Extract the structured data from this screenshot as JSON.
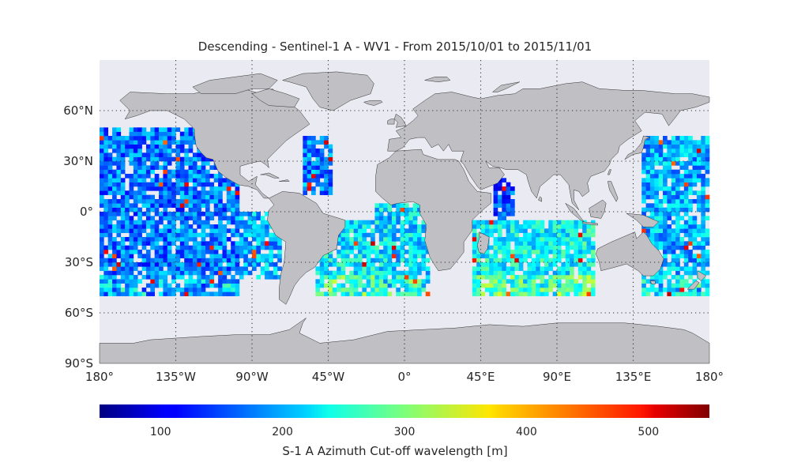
{
  "title": "Descending - Sentinel-1 A - WV1 - From 2015/10/01 to 2015/11/01",
  "map": {
    "projection": "equirectangular",
    "lon_range": [
      -180,
      180
    ],
    "lat_range": [
      -90,
      90
    ],
    "grid": true,
    "lon_ticks": [
      {
        "value": -180,
        "label": "180°"
      },
      {
        "value": -135,
        "label": "135°W"
      },
      {
        "value": -90,
        "label": "90°W"
      },
      {
        "value": -45,
        "label": "45°W"
      },
      {
        "value": 0,
        "label": "0°"
      },
      {
        "value": 45,
        "label": "45°E"
      },
      {
        "value": 90,
        "label": "90°E"
      },
      {
        "value": 135,
        "label": "135°E"
      },
      {
        "value": 180,
        "label": "180°"
      }
    ],
    "lat_ticks": [
      {
        "value": 60,
        "label": "60°N"
      },
      {
        "value": 30,
        "label": "30°N"
      },
      {
        "value": 0,
        "label": "0°"
      },
      {
        "value": -30,
        "label": "30°S"
      },
      {
        "value": -60,
        "label": "60°S"
      },
      {
        "value": -90,
        "label": "90°S"
      }
    ],
    "ocean_color": "#eaeaf2",
    "land_color": "#bfbfc4",
    "coast_color": "#333333"
  },
  "colorbar": {
    "label": "S-1 A Azimuth Cut-off wavelength [m]",
    "range": [
      50,
      550
    ],
    "colormap": "jet",
    "ticks": [
      {
        "value": 100,
        "label": "100"
      },
      {
        "value": 200,
        "label": "200"
      },
      {
        "value": 300,
        "label": "300"
      },
      {
        "value": 400,
        "label": "400"
      },
      {
        "value": 500,
        "label": "500"
      }
    ]
  },
  "chart_data": {
    "type": "heatmap",
    "title": "Descending - Sentinel-1 A - WV1 - From 2015/10/01 to 2015/11/01",
    "value_label": "S-1 A Azimuth Cut-off wavelength [m]",
    "value_range": [
      50,
      550
    ],
    "data_lat_range": [
      -50,
      50
    ],
    "regions": [
      {
        "lon_range": [
          -180,
          -97
        ],
        "lat_range": [
          -50,
          50
        ],
        "typical_value": 170
      },
      {
        "lon_range": [
          -97,
          -72
        ],
        "lat_range": [
          -40,
          0
        ],
        "typical_value": 200
      },
      {
        "lon_range": [
          -60,
          -42
        ],
        "lat_range": [
          10,
          45
        ],
        "typical_value": 175
      },
      {
        "lon_range": [
          -52,
          -10
        ],
        "lat_range": [
          -50,
          -5
        ],
        "typical_value": 230
      },
      {
        "lon_range": [
          -17,
          14
        ],
        "lat_range": [
          -50,
          5
        ],
        "typical_value": 220
      },
      {
        "lon_range": [
          40,
          112
        ],
        "lat_range": [
          -50,
          -5
        ],
        "typical_value": 240
      },
      {
        "lon_range": [
          52,
          65
        ],
        "lat_range": [
          -5,
          20
        ],
        "typical_value": 150
      },
      {
        "lon_range": [
          140,
          180
        ],
        "lat_range": [
          -50,
          45
        ],
        "typical_value": 200
      }
    ]
  }
}
